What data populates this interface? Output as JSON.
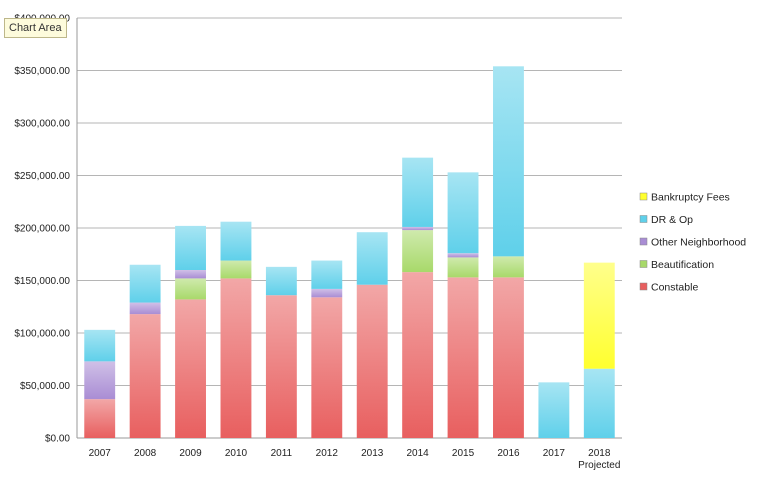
{
  "tooltip": "Chart Area",
  "chart_data": {
    "type": "bar",
    "stacked": true,
    "categories": [
      "2007",
      "2008",
      "2009",
      "2010",
      "2011",
      "2012",
      "2013",
      "2014",
      "2015",
      "2016",
      "2017",
      "2018\nProjected"
    ],
    "series": [
      {
        "name": "Constable",
        "color": "#e85f5f",
        "values": [
          37000,
          118000,
          132000,
          152000,
          136000,
          134000,
          146000,
          158000,
          153000,
          153000,
          0,
          0
        ]
      },
      {
        "name": "Beautification",
        "color": "#a8d96a",
        "values": [
          0,
          0,
          20000,
          17000,
          0,
          0,
          0,
          40000,
          19000,
          20000,
          0,
          0
        ]
      },
      {
        "name": "Other Neighborhood",
        "color": "#a98dd4",
        "values": [
          36000,
          11000,
          8000,
          0,
          0,
          8000,
          0,
          3000,
          4000,
          0,
          0,
          0
        ]
      },
      {
        "name": "DR & Op",
        "color": "#5fd0ea",
        "values": [
          30000,
          36000,
          42000,
          37000,
          27000,
          27000,
          50000,
          66000,
          77000,
          181000,
          53000,
          66000
        ]
      },
      {
        "name": "Bankruptcy Fees",
        "color": "#ffff2e",
        "values": [
          0,
          0,
          0,
          0,
          0,
          0,
          0,
          0,
          0,
          0,
          0,
          101000
        ]
      }
    ],
    "y_ticks": [
      "$0.00",
      "$50,000.00",
      "$100,000.00",
      "$150,000.00",
      "$200,000.00",
      "$250,000.00",
      "$300,000.00",
      "$350,000.00",
      "$400,000.00"
    ],
    "ylim": [
      0,
      400000
    ],
    "grid": true,
    "legend_position": "right",
    "legend_order": [
      "Bankruptcy Fees",
      "DR & Op",
      "Other Neighborhood",
      "Beautification",
      "Constable"
    ]
  }
}
